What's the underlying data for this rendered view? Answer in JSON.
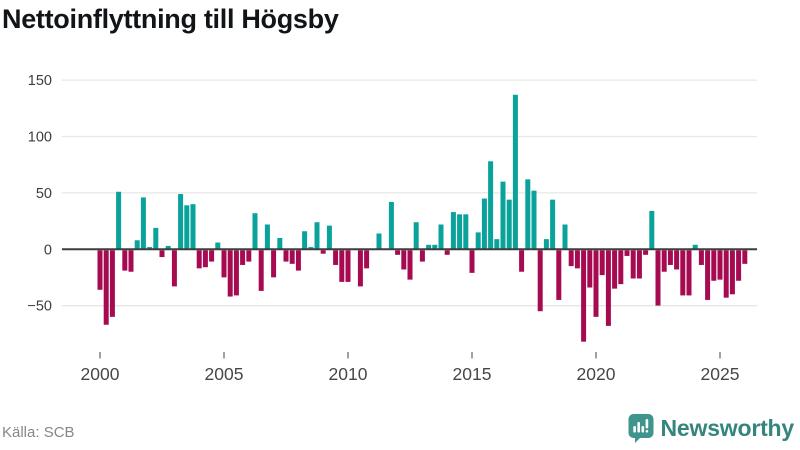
{
  "title": "Nettoinflyttning till Högsby",
  "source": "Källa: SCB",
  "branding": {
    "wordmark": "Newsworthy",
    "logo_icon": "bar-chart-speech-bubble-icon",
    "logo_color": "#3f958d",
    "wordmark_color": "#35857e"
  },
  "colors": {
    "positive_bar": "#0aa39b",
    "negative_bar": "#a60a50",
    "grid": "#e7e7e7",
    "zero_line": "#3d3d3d",
    "y_label_text": "#3d3d3d",
    "x_label_text": "#474747",
    "tick_mark": "#8a8a8a",
    "title_text": "#121518",
    "source_text": "#878787"
  },
  "chart_data": {
    "type": "bar",
    "title": "Nettoinflyttning till Högsby",
    "xlabel": "",
    "ylabel": "",
    "legend": "none",
    "grid": "horizontal",
    "ylim": [
      -90,
      160
    ],
    "y_ticks": [
      150,
      100,
      50,
      0,
      -50
    ],
    "x_ticks": [
      2000,
      2005,
      2010,
      2015,
      2020,
      2025
    ],
    "start_quarter": "2000Q1",
    "end_quarter": "2026Q1",
    "quarters_per_year": 4,
    "values": [
      -35,
      -66,
      -59,
      51,
      -18,
      -19,
      8,
      46,
      2,
      19,
      -6,
      3,
      -32,
      49,
      39,
      40,
      -16,
      -15,
      -10,
      6,
      -24,
      -41,
      -40,
      -13,
      -10,
      32,
      -36,
      22,
      -24,
      10,
      -10,
      -12,
      -18,
      16,
      2,
      24,
      -3,
      21,
      -13,
      -28,
      -28,
      0,
      -32,
      -16,
      0,
      14,
      0,
      42,
      -4,
      -17,
      -26,
      24,
      -10,
      4,
      4,
      22,
      -4,
      33,
      31,
      31,
      -20,
      15,
      45,
      78,
      9,
      60,
      44,
      137,
      -19,
      62,
      52,
      -54,
      9,
      44,
      -44,
      22,
      -14,
      -16,
      -81,
      -33,
      -59,
      -22,
      -67,
      -34,
      -30,
      -5,
      -25,
      -25,
      -4,
      34,
      -49,
      -19,
      -13,
      -17,
      -40,
      -40,
      4,
      -13,
      -44,
      -27,
      -26,
      -42,
      -39,
      -27,
      -12
    ]
  }
}
